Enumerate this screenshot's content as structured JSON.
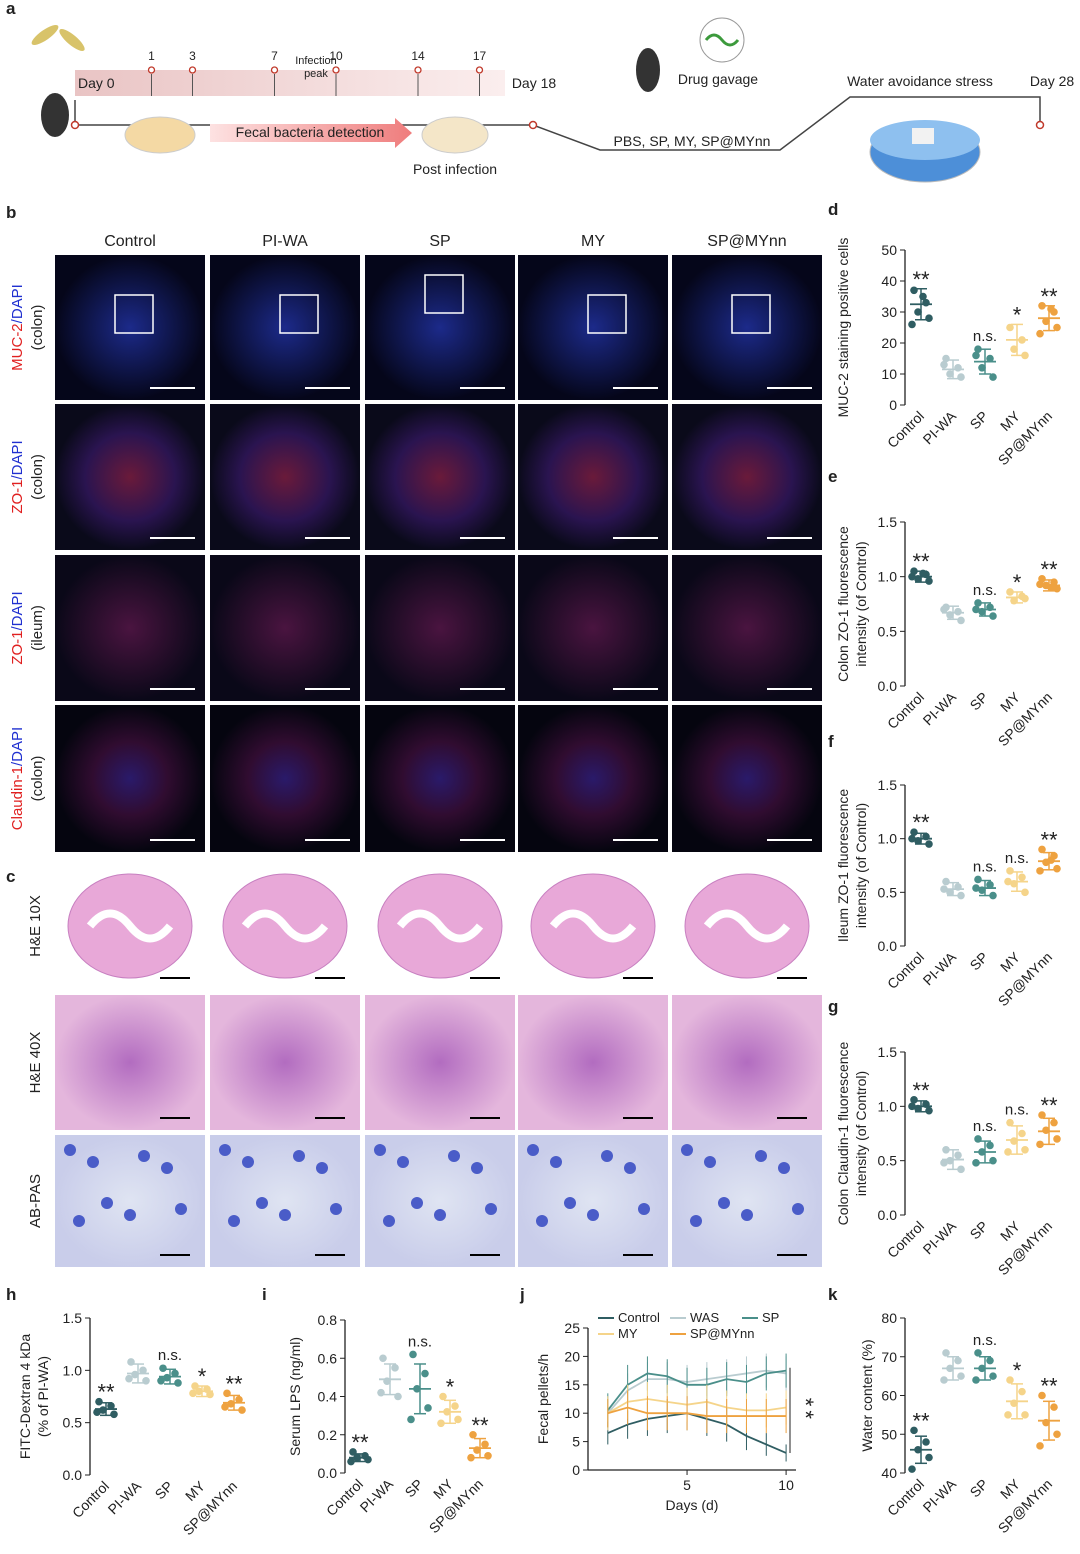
{
  "panel_a": {
    "label": "a",
    "start": "Day 0",
    "days": [
      1,
      3,
      7,
      10,
      14,
      17
    ],
    "peak": [
      "Infection",
      "peak"
    ],
    "detection": "Fecal bacteria detection",
    "post": "Post infection",
    "day18": "Day 18",
    "gavage": "Drug gavage",
    "groups": "PBS, SP, MY, SP@MYnn",
    "stress": "Water avoidance stress",
    "end": "Day 28"
  },
  "panel_b": {
    "label": "b",
    "columns": [
      "Control",
      "PI-WA",
      "SP",
      "MY",
      "SP@MYnn"
    ],
    "rows": [
      {
        "stain": "MUC-2",
        "counter": "/DAPI",
        "tissue": "(colon)"
      },
      {
        "stain": "ZO-1",
        "counter": "/DAPI",
        "tissue": "(colon)"
      },
      {
        "stain": "ZO-1",
        "counter": "/DAPI",
        "tissue": "(ileum)"
      },
      {
        "stain": "Claudin-1",
        "counter": "/DAPI",
        "tissue": "(colon)"
      }
    ]
  },
  "panel_c": {
    "label": "c",
    "rows": [
      "H&E 10X",
      "H&E 40X",
      "AB-PAS"
    ]
  },
  "chart_data": [
    {
      "type": "dot",
      "panel": "d",
      "ylabel": [
        "MUC-2 staining positive cells"
      ],
      "categories": [
        "Control",
        "PI-WA",
        "SP",
        "MY",
        "SP@MYnn"
      ],
      "colors": [
        "#2f5d62",
        "#b9ccd0",
        "#4a8f8a",
        "#f5d48a",
        "#eea240"
      ],
      "values": [
        32.5,
        11.5,
        14,
        21,
        28
      ],
      "errors": [
        5,
        3,
        4,
        5,
        4
      ],
      "points": [
        [
          37,
          33,
          30,
          28,
          26,
          35
        ],
        [
          15,
          12,
          10,
          9,
          13
        ],
        [
          18,
          15,
          12,
          9,
          16
        ],
        [
          25,
          21,
          18,
          16
        ],
        [
          32,
          30,
          27,
          25,
          23,
          31
        ]
      ],
      "annotations": [
        "**",
        null,
        "n.s.",
        "*",
        "**"
      ],
      "ylim": [
        0,
        50
      ],
      "yticks": [
        0,
        10,
        20,
        30,
        40,
        50
      ]
    },
    {
      "type": "dot",
      "panel": "e",
      "ylabel": [
        "Colon ZO-1 fluorescence",
        "intensity (of Control)"
      ],
      "categories": [
        "Control",
        "PI-WA",
        "SP",
        "MY",
        "SP@MYnn"
      ],
      "colors": [
        "#2f5d62",
        "#b9ccd0",
        "#4a8f8a",
        "#f5d48a",
        "#eea240"
      ],
      "values": [
        1.0,
        0.67,
        0.7,
        0.81,
        0.92
      ],
      "errors": [
        0.05,
        0.06,
        0.06,
        0.05,
        0.05
      ],
      "points": [
        [
          1.05,
          1.02,
          0.98,
          0.96,
          1.0,
          1.03
        ],
        [
          0.72,
          0.68,
          0.65,
          0.6,
          0.7
        ],
        [
          0.76,
          0.72,
          0.68,
          0.64,
          0.7
        ],
        [
          0.86,
          0.82,
          0.78,
          0.8
        ],
        [
          0.98,
          0.95,
          0.92,
          0.89,
          0.93,
          0.9
        ]
      ],
      "annotations": [
        "**",
        null,
        "n.s.",
        "*",
        "**"
      ],
      "ylim": [
        0,
        1.5
      ],
      "yticks": [
        {
          "value": 0,
          "label": "0.0"
        },
        0.5,
        {
          "value": 1,
          "label": "1.0"
        },
        1.5
      ]
    },
    {
      "type": "dot",
      "panel": "f",
      "ylabel": [
        "Ileum ZO-1 fluorescence",
        "intensity (of Control)"
      ],
      "categories": [
        "Control",
        "PI-WA",
        "SP",
        "MY",
        "SP@MYnn"
      ],
      "colors": [
        "#2f5d62",
        "#b9ccd0",
        "#4a8f8a",
        "#f5d48a",
        "#eea240"
      ],
      "values": [
        1.0,
        0.53,
        0.54,
        0.6,
        0.79
      ],
      "errors": [
        0.05,
        0.06,
        0.07,
        0.09,
        0.08
      ],
      "points": [
        [
          1.06,
          1.02,
          0.98,
          0.95,
          1.0
        ],
        [
          0.6,
          0.55,
          0.5,
          0.47,
          0.53
        ],
        [
          0.62,
          0.57,
          0.52,
          0.47,
          0.54
        ],
        [
          0.7,
          0.64,
          0.58,
          0.5,
          0.6
        ],
        [
          0.9,
          0.84,
          0.78,
          0.72,
          0.7,
          0.8
        ]
      ],
      "annotations": [
        "**",
        null,
        "n.s.",
        "n.s.",
        "**"
      ],
      "ylim": [
        0,
        1.5
      ],
      "yticks": [
        {
          "value": 0,
          "label": "0.0"
        },
        0.5,
        {
          "value": 1,
          "label": "1.0"
        },
        1.5
      ]
    },
    {
      "type": "dot",
      "panel": "g",
      "ylabel": [
        "Colon Claudin-1 fluorescence",
        "intensity (of Control)"
      ],
      "categories": [
        "Control",
        "PI-WA",
        "SP",
        "MY",
        "SP@MYnn"
      ],
      "colors": [
        "#2f5d62",
        "#b9ccd0",
        "#4a8f8a",
        "#f5d48a",
        "#eea240"
      ],
      "values": [
        1.0,
        0.51,
        0.58,
        0.69,
        0.77
      ],
      "errors": [
        0.05,
        0.09,
        0.1,
        0.13,
        0.12
      ],
      "points": [
        [
          1.06,
          1.02,
          0.98,
          0.96,
          1.0
        ],
        [
          0.6,
          0.55,
          0.5,
          0.42,
          0.48
        ],
        [
          0.7,
          0.64,
          0.58,
          0.5,
          0.48
        ],
        [
          0.85,
          0.75,
          0.68,
          0.6,
          0.58
        ],
        [
          0.92,
          0.85,
          0.78,
          0.7,
          0.65
        ]
      ],
      "annotations": [
        "**",
        null,
        "n.s.",
        "n.s.",
        "**"
      ],
      "ylim": [
        0,
        1.5
      ],
      "yticks": [
        {
          "value": 0,
          "label": "0.0"
        },
        0.5,
        {
          "value": 1,
          "label": "1.0"
        },
        1.5
      ]
    },
    {
      "type": "dot",
      "panel": "h",
      "ylabel": [
        "FITC-Dextran 4 kDa",
        "(% of PI-WA)"
      ],
      "categories": [
        "Control",
        "PI-WA",
        "SP",
        "MY",
        "SP@MYnn"
      ],
      "colors": [
        "#2f5d62",
        "#b9ccd0",
        "#4a8f8a",
        "#f5d48a",
        "#eea240"
      ],
      "values": [
        0.63,
        0.97,
        0.94,
        0.8,
        0.69
      ],
      "errors": [
        0.06,
        0.09,
        0.07,
        0.05,
        0.07
      ],
      "points": [
        [
          0.7,
          0.66,
          0.62,
          0.58,
          0.6
        ],
        [
          1.08,
          1.0,
          0.96,
          0.9,
          0.92
        ],
        [
          1.02,
          0.97,
          0.93,
          0.88,
          0.9
        ],
        [
          0.85,
          0.82,
          0.8,
          0.77,
          0.78
        ],
        [
          0.78,
          0.72,
          0.68,
          0.62,
          0.65
        ]
      ],
      "annotations": [
        "**",
        null,
        "n.s.",
        "*",
        "**"
      ],
      "ylim": [
        0,
        1.5
      ],
      "yticks": [
        {
          "value": 0,
          "label": "0.0"
        },
        0.5,
        {
          "value": 1,
          "label": "1.0"
        },
        1.5
      ]
    },
    {
      "type": "dot",
      "panel": "i",
      "ylabel": [
        "Serum LPS (ng/ml)"
      ],
      "categories": [
        "Control",
        "PI-WA",
        "SP",
        "MY",
        "SP@MYnn"
      ],
      "colors": [
        "#2f5d62",
        "#b9ccd0",
        "#4a8f8a",
        "#f5d48a",
        "#eea240"
      ],
      "values": [
        0.08,
        0.49,
        0.44,
        0.32,
        0.13
      ],
      "errors": [
        0.02,
        0.08,
        0.13,
        0.06,
        0.05
      ],
      "points": [
        [
          0.11,
          0.09,
          0.08,
          0.07,
          0.06
        ],
        [
          0.6,
          0.55,
          0.48,
          0.4,
          0.42
        ],
        [
          0.62,
          0.52,
          0.44,
          0.34,
          0.28
        ],
        [
          0.4,
          0.35,
          0.32,
          0.28,
          0.26
        ],
        [
          0.2,
          0.15,
          0.12,
          0.09,
          0.08
        ]
      ],
      "annotations": [
        "**",
        null,
        "n.s.",
        "*",
        "**"
      ],
      "ylim": [
        0,
        0.8
      ],
      "yticks": [
        {
          "value": 0,
          "label": "0.0"
        },
        0.2,
        0.4,
        0.6,
        0.8
      ]
    },
    {
      "type": "line",
      "panel": "j",
      "ylabel": [
        "Fecal pellets/h"
      ],
      "xlabel": "Days (d)",
      "x": [
        1,
        2,
        3,
        4,
        5,
        6,
        7,
        8,
        9,
        10
      ],
      "xlim": [
        0,
        10.5
      ],
      "xticks": [
        5,
        10
      ],
      "ylim": [
        0,
        25
      ],
      "yticks": [
        0,
        5,
        10,
        15,
        20,
        25
      ],
      "significance": "**",
      "series": [
        {
          "name": "Control",
          "color": "#2f5d62",
          "values": [
            6.5,
            8,
            9,
            9.5,
            10,
            9,
            8,
            6,
            4.5,
            3
          ],
          "errors": [
            2,
            2.5,
            3,
            3,
            3,
            3,
            3,
            2.5,
            2,
            1.5
          ]
        },
        {
          "name": "WAS",
          "color": "#b9ccd0",
          "values": [
            10,
            14,
            16,
            16,
            15.5,
            16,
            16.5,
            17,
            17.5,
            17
          ],
          "errors": [
            3,
            3,
            3,
            3,
            3,
            3,
            3,
            3,
            3,
            3
          ]
        },
        {
          "name": "SP",
          "color": "#4a8f8a",
          "values": [
            10.5,
            15,
            17,
            16.5,
            15,
            15,
            16,
            15.5,
            17,
            17.5
          ],
          "errors": [
            3,
            3.5,
            3,
            3,
            3,
            3,
            3,
            3,
            3,
            3
          ]
        },
        {
          "name": "MY",
          "color": "#f5d48a",
          "values": [
            10,
            12,
            12.5,
            12,
            11.5,
            12,
            11,
            10.5,
            10.5,
            11
          ],
          "errors": [
            3,
            3,
            3,
            3,
            3,
            3,
            3,
            3,
            3,
            3
          ]
        },
        {
          "name": "SP@MYnn",
          "color": "#eea240",
          "values": [
            10,
            11,
            10,
            10,
            10,
            9.5,
            9.5,
            9.5,
            9.5,
            9.5
          ],
          "errors": [
            2.5,
            3,
            3,
            3,
            3,
            3,
            3,
            3,
            3,
            3
          ]
        }
      ]
    },
    {
      "type": "dot",
      "panel": "k",
      "ylabel": [
        "Water content (%)"
      ],
      "categories": [
        "Control",
        "PI-WA",
        "SP",
        "MY",
        "SP@MYnn"
      ],
      "colors": [
        "#2f5d62",
        "#b9ccd0",
        "#4a8f8a",
        "#f5d48a",
        "#eea240"
      ],
      "values": [
        46,
        67,
        67,
        58.5,
        53.5
      ],
      "errors": [
        3.5,
        3,
        3,
        4.5,
        5
      ],
      "points": [
        [
          51,
          48,
          46,
          44,
          41
        ],
        [
          71,
          69,
          67,
          65,
          64
        ],
        [
          71,
          69,
          67,
          65,
          64
        ],
        [
          64,
          61,
          58,
          55,
          55
        ],
        [
          60,
          57,
          53,
          50,
          47
        ]
      ],
      "annotations": [
        "**",
        null,
        "n.s.",
        "*",
        "**"
      ],
      "ylim": [
        40,
        80
      ],
      "yticks": [
        40,
        50,
        60,
        70,
        80
      ]
    }
  ]
}
